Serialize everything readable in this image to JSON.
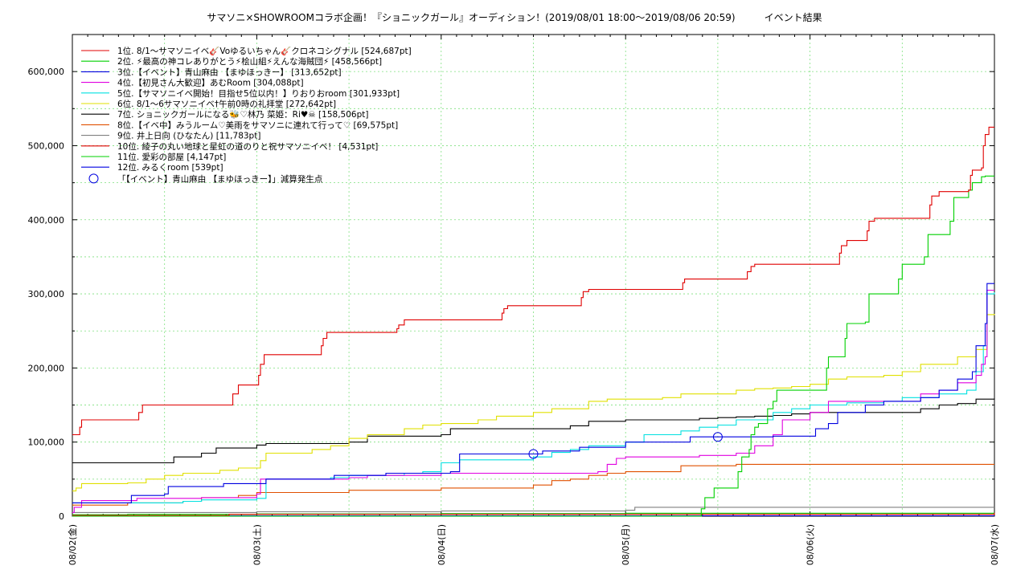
{
  "chart_data": {
    "type": "line",
    "title": "サマソニ×SHOWROOMコラボ企画！『ショニックガール』オーディション！(2019/08/01 18:00〜2019/08/06 20:59)　　　イベント結果",
    "xlabel": "",
    "ylabel": "",
    "xlim": [
      0,
      5
    ],
    "ylim": [
      0,
      650000
    ],
    "grid": true,
    "legend_position": "top-left",
    "x_ticks": [
      "08/02(金)",
      "08/03(土)",
      "08/04(日)",
      "08/05(月)",
      "08/06(火)",
      "08/07(水)"
    ],
    "y_ticks": [
      0,
      100000,
      200000,
      300000,
      400000,
      500000,
      600000
    ],
    "y_tick_labels": [
      "0",
      "100,000",
      "200,000",
      "300,000",
      "400,000",
      "500,000",
      "600,000"
    ],
    "series": [
      {
        "name": "1位. 8/1〜サマソニイベ🎸Voゆるいちゃん🎸クロネコシグナル [524,687pt]",
        "color": "#e00000",
        "x": [
          0,
          0.04,
          0.04,
          0.05,
          0.08,
          0.35,
          0.36,
          0.38,
          0.85,
          0.86,
          0.87,
          0.9,
          1.0,
          1.01,
          1.02,
          1.04,
          1.34,
          1.35,
          1.36,
          1.38,
          1.75,
          1.76,
          1.77,
          1.8,
          2.32,
          2.33,
          2.34,
          2.36,
          2.75,
          2.76,
          2.77,
          2.8,
          3.3,
          3.31,
          3.32,
          3.35,
          3.65,
          3.66,
          3.68,
          3.7,
          4.15,
          4.16,
          4.17,
          4.2,
          4.3,
          4.31,
          4.32,
          4.35,
          4.64,
          4.65,
          4.66,
          4.7,
          4.86,
          4.87,
          4.88,
          4.93,
          4.94,
          4.95,
          4.97,
          5.0
        ],
        "y": [
          110000,
          110000,
          120000,
          130000,
          130000,
          130000,
          140000,
          150000,
          150000,
          150000,
          165000,
          177000,
          177000,
          190000,
          205000,
          218000,
          218000,
          230000,
          240000,
          248000,
          248000,
          253000,
          258000,
          265000,
          265000,
          274000,
          280000,
          284000,
          284000,
          295000,
          303000,
          306000,
          306000,
          315000,
          320000,
          320000,
          320000,
          330000,
          337000,
          340000,
          340000,
          355000,
          365000,
          372000,
          372000,
          385000,
          398000,
          402000,
          402000,
          420000,
          432000,
          438000,
          440000,
          460000,
          467000,
          470000,
          500000,
          515000,
          525000,
          525000
        ]
      },
      {
        "name": "2位. ⚡最高の神コレありがとう⚡桧山組⚡えんな海賊団⚡ [458,566pt]",
        "color": "#00d000",
        "x": [
          0,
          3.4,
          3.41,
          3.43,
          3.48,
          3.6,
          3.61,
          3.63,
          3.67,
          3.68,
          3.7,
          3.72,
          3.76,
          3.77,
          3.8,
          3.82,
          3.85,
          4.08,
          4.09,
          4.1,
          4.18,
          4.19,
          4.2,
          4.3,
          4.31,
          4.32,
          4.48,
          4.49,
          4.5,
          4.62,
          4.63,
          4.64,
          4.76,
          4.77,
          4.78,
          4.86,
          4.87,
          4.88,
          4.93,
          4.94,
          4.95,
          5.0
        ],
        "y": [
          0,
          0,
          10000,
          25000,
          38000,
          38000,
          60000,
          80000,
          90000,
          110000,
          120000,
          125000,
          125000,
          145000,
          155000,
          170000,
          170000,
          170000,
          200000,
          215000,
          215000,
          240000,
          260000,
          262000,
          262000,
          300000,
          320000,
          320000,
          340000,
          350000,
          350000,
          380000,
          398000,
          398000,
          430000,
          440000,
          440000,
          450000,
          458000,
          458000,
          459000,
          459000
        ]
      },
      {
        "name": "3位.【イベント】青山麻由 【まゆほっきー】 [313,652pt]",
        "color": "#0000e0",
        "x": [
          0,
          0.3,
          0.32,
          0.5,
          0.52,
          0.8,
          0.82,
          1.03,
          1.05,
          1.4,
          1.42,
          1.65,
          1.7,
          2.02,
          2.05,
          2.1,
          2.5,
          2.55,
          2.7,
          2.75,
          2.95,
          3.0,
          3.3,
          3.35,
          3.7,
          3.8,
          4.0,
          4.03,
          4.1,
          4.15,
          4.3,
          4.4,
          4.6,
          4.7,
          4.8,
          4.88,
          4.9,
          4.95,
          4.96,
          5.0
        ],
        "y": [
          18000,
          18000,
          28000,
          30000,
          40000,
          40000,
          44000,
          44000,
          50000,
          50000,
          55000,
          55000,
          58000,
          58000,
          60000,
          84000,
          84000,
          88000,
          88000,
          93000,
          93000,
          100000,
          100000,
          107000,
          107000,
          108000,
          108000,
          118000,
          125000,
          140000,
          150000,
          155000,
          160000,
          170000,
          185000,
          195000,
          230000,
          260000,
          314000,
          314000
        ]
      },
      {
        "name": "4位.【初見さん大歓迎】あむRoom [304,088pt]",
        "color": "#e000e0",
        "x": [
          0,
          0.01,
          0.05,
          0.3,
          0.35,
          0.6,
          0.7,
          0.9,
          1.0,
          1.02,
          1.5,
          1.6,
          2.0,
          2.6,
          2.85,
          2.9,
          2.95,
          3.0,
          3.05,
          3.3,
          3.4,
          3.6,
          3.7,
          3.8,
          3.85,
          4.0,
          4.1,
          4.4,
          4.6,
          4.7,
          4.8,
          4.9,
          4.93,
          4.95,
          4.96,
          5.0
        ],
        "y": [
          5000,
          12000,
          21000,
          21000,
          24000,
          24000,
          25000,
          25000,
          30000,
          50000,
          52000,
          55000,
          58000,
          58000,
          60000,
          70000,
          78000,
          80000,
          80000,
          80000,
          82000,
          85000,
          95000,
          110000,
          130000,
          140000,
          155000,
          155000,
          165000,
          170000,
          180000,
          190000,
          205000,
          215000,
          305000,
          305000
        ]
      },
      {
        "name": "5位.【サマソニイベ開始！目指せ5位以内！】りおりおroom [301,933pt]",
        "color": "#00e0e0",
        "x": [
          0,
          0.6,
          0.7,
          1.0,
          1.05,
          1.4,
          1.5,
          1.8,
          1.9,
          2.0,
          2.1,
          2.5,
          2.6,
          2.7,
          2.8,
          3.0,
          3.1,
          3.3,
          3.4,
          3.5,
          3.6,
          3.8,
          3.9,
          4.0,
          4.2,
          4.4,
          4.5,
          4.7,
          4.85,
          4.9,
          4.94,
          4.96,
          5.0
        ],
        "y": [
          18000,
          20000,
          22000,
          24000,
          50000,
          52000,
          55000,
          58000,
          60000,
          72000,
          76000,
          80000,
          86000,
          90000,
          95000,
          100000,
          110000,
          115000,
          120000,
          123000,
          130000,
          140000,
          145000,
          150000,
          153000,
          155000,
          160000,
          165000,
          170000,
          195000,
          230000,
          300000,
          302000
        ]
      },
      {
        "name": "6位. 8/1〜6サマソニイベ†午前0時の礼拝堂 [272,642pt]",
        "color": "#e0e000",
        "x": [
          0,
          0.02,
          0.05,
          0.3,
          0.4,
          0.5,
          0.6,
          0.8,
          0.9,
          1.0,
          1.02,
          1.05,
          1.3,
          1.4,
          1.5,
          1.6,
          1.8,
          1.9,
          2.0,
          2.2,
          2.3,
          2.5,
          2.6,
          2.8,
          2.9,
          3.2,
          3.3,
          3.6,
          3.7,
          3.8,
          3.9,
          4.0,
          4.1,
          4.2,
          4.4,
          4.5,
          4.6,
          4.8,
          4.9,
          4.96,
          5.0
        ],
        "y": [
          34000,
          38000,
          44000,
          45000,
          50000,
          55000,
          58000,
          62000,
          65000,
          65000,
          75000,
          85000,
          90000,
          95000,
          105000,
          110000,
          118000,
          123000,
          125000,
          130000,
          135000,
          140000,
          145000,
          155000,
          158000,
          160000,
          165000,
          170000,
          172000,
          173000,
          175000,
          178000,
          185000,
          188000,
          190000,
          195000,
          205000,
          215000,
          225000,
          272000,
          273000
        ]
      },
      {
        "name": "7位. ショニックガールになる🐝♡林乃 菜姫：Ri♥☠ [158,506pt]",
        "color": "#000000",
        "x": [
          0,
          0.5,
          0.55,
          0.7,
          0.78,
          1.0,
          1.05,
          1.5,
          1.6,
          2.0,
          2.05,
          2.5,
          2.7,
          2.8,
          3.0,
          3.2,
          3.4,
          3.5,
          3.6,
          3.7,
          3.8,
          3.9,
          4.0,
          4.1,
          4.3,
          4.6,
          4.7,
          4.8,
          4.9,
          5.0
        ],
        "y": [
          72000,
          72000,
          80000,
          85000,
          92000,
          96000,
          98000,
          100000,
          108000,
          110000,
          118000,
          118000,
          122000,
          128000,
          130000,
          130000,
          132000,
          133000,
          134000,
          135000,
          136000,
          138000,
          140000,
          140000,
          140000,
          145000,
          150000,
          152000,
          158000,
          159000
        ]
      },
      {
        "name": "8位.【イベ中】みうルーム♡美雨をサマソニに連れて行って♡ [69,575pt]",
        "color": "#e05000",
        "x": [
          0,
          0.2,
          0.3,
          0.6,
          0.7,
          0.9,
          1.0,
          1.5,
          2.0,
          2.5,
          2.6,
          2.7,
          2.8,
          2.9,
          3.0,
          3.3,
          3.5,
          3.6,
          4.0,
          5.0
        ],
        "y": [
          15000,
          15000,
          18000,
          20000,
          25000,
          28000,
          32000,
          35000,
          38000,
          42000,
          48000,
          50000,
          55000,
          58000,
          60000,
          68000,
          68000,
          70000,
          70000,
          70000
        ]
      },
      {
        "name": "9位. 井上日向 (ひなたん) [11,783pt]",
        "color": "#808080",
        "x": [
          0,
          0.5,
          1.0,
          1.5,
          2.0,
          2.5,
          3.0,
          3.05,
          5.0
        ],
        "y": [
          5000,
          5000,
          6000,
          6000,
          7000,
          7000,
          8000,
          12000,
          12000
        ]
      },
      {
        "name": "10位. 綾子の丸い地球と星虹の道のりと祝サマソニイベ！ [4,531pt]",
        "color": "#e00000",
        "x": [
          0,
          0.8,
          0.85,
          5.0
        ],
        "y": [
          1000,
          1000,
          2500,
          4500
        ]
      },
      {
        "name": "11位. 愛彩の部屋 [4,147pt]",
        "color": "#00d000",
        "x": [
          0,
          0.3,
          1.0,
          2.0,
          3.0,
          5.0
        ],
        "y": [
          2000,
          2500,
          3000,
          3500,
          4000,
          4100
        ]
      },
      {
        "name": "12位. みるくroom [539pt]",
        "color": "#0000e0",
        "x": [
          0,
          5.0
        ],
        "y": [
          500,
          539
        ]
      }
    ],
    "markers": {
      "name": "「【イベント】青山麻由 【まゆほっきー】」減算発生点",
      "color": "#0000e0",
      "points": [
        {
          "x": 2.5,
          "y": 84000
        },
        {
          "x": 3.5,
          "y": 107000
        }
      ]
    }
  }
}
